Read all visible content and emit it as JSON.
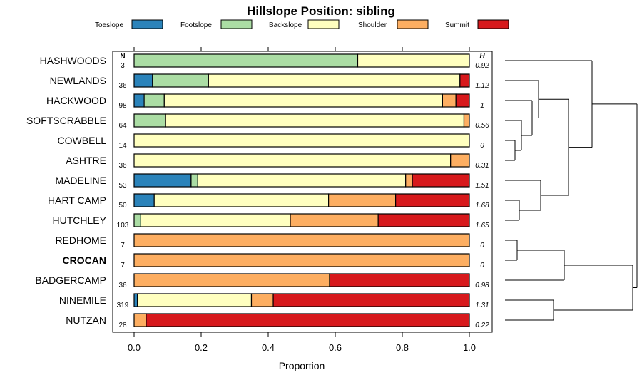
{
  "chart_data": {
    "type": "bar",
    "orientation": "horizontal",
    "stacked": true,
    "title": "Hillslope Position: sibling",
    "xlabel": "Proportion",
    "xlim": [
      0,
      1
    ],
    "xticks": [
      "0.0",
      "0.2",
      "0.4",
      "0.6",
      "0.8",
      "1.0"
    ],
    "column_headers": {
      "n": "N",
      "h": "H"
    },
    "legend": [
      {
        "name": "Toeslope",
        "color": "#2B83BA"
      },
      {
        "name": "Footslope",
        "color": "#ABDDA4"
      },
      {
        "name": "Backslope",
        "color": "#FFFFBF"
      },
      {
        "name": "Shoulder",
        "color": "#FDAE61"
      },
      {
        "name": "Summit",
        "color": "#D7191C"
      }
    ],
    "categories": [
      "HASHWOODS",
      "NEWLANDS",
      "HACKWOOD",
      "SOFTSCRABBLE",
      "COWBELL",
      "ASHTRE",
      "MADELINE",
      "HART CAMP",
      "HUTCHLEY",
      "REDHOME",
      "CROCAN",
      "BADGERCAMP",
      "NINEMILE",
      "NUTZAN"
    ],
    "highlight": "CROCAN",
    "n": [
      "3",
      "36",
      "98",
      "64",
      "14",
      "36",
      "53",
      "50",
      "103",
      "7",
      "7",
      "36",
      "319",
      "28"
    ],
    "h": [
      "0.92",
      "1.12",
      "1",
      "0.56",
      "0",
      "0.31",
      "1.51",
      "1.68",
      "1.65",
      "0",
      "0",
      "0.98",
      "1.31",
      "0.22"
    ],
    "series": [
      {
        "name": "Toeslope",
        "values": [
          0,
          0.055,
          0.03,
          0,
          0,
          0,
          0.17,
          0.06,
          0,
          0,
          0,
          0,
          0.01,
          0
        ]
      },
      {
        "name": "Footslope",
        "values": [
          0.667,
          0.167,
          0.06,
          0.094,
          0,
          0,
          0.02,
          0,
          0.02,
          0,
          0,
          0,
          0,
          0
        ]
      },
      {
        "name": "Backslope",
        "values": [
          0.333,
          0.75,
          0.83,
          0.89,
          1.0,
          0.944,
          0.62,
          0.52,
          0.446,
          0,
          0,
          0,
          0.34,
          0
        ]
      },
      {
        "name": "Shoulder",
        "values": [
          0,
          0,
          0.04,
          0.016,
          0,
          0.056,
          0.02,
          0.2,
          0.262,
          1.0,
          1.0,
          0.583,
          0.065,
          0.036
        ]
      },
      {
        "name": "Summit",
        "values": [
          0,
          0.028,
          0.04,
          0,
          0,
          0,
          0.17,
          0.22,
          0.272,
          0,
          0,
          0.417,
          0.585,
          0.964
        ]
      }
    ],
    "dendrogram": "hierarchical clustering of rows shown at right"
  }
}
